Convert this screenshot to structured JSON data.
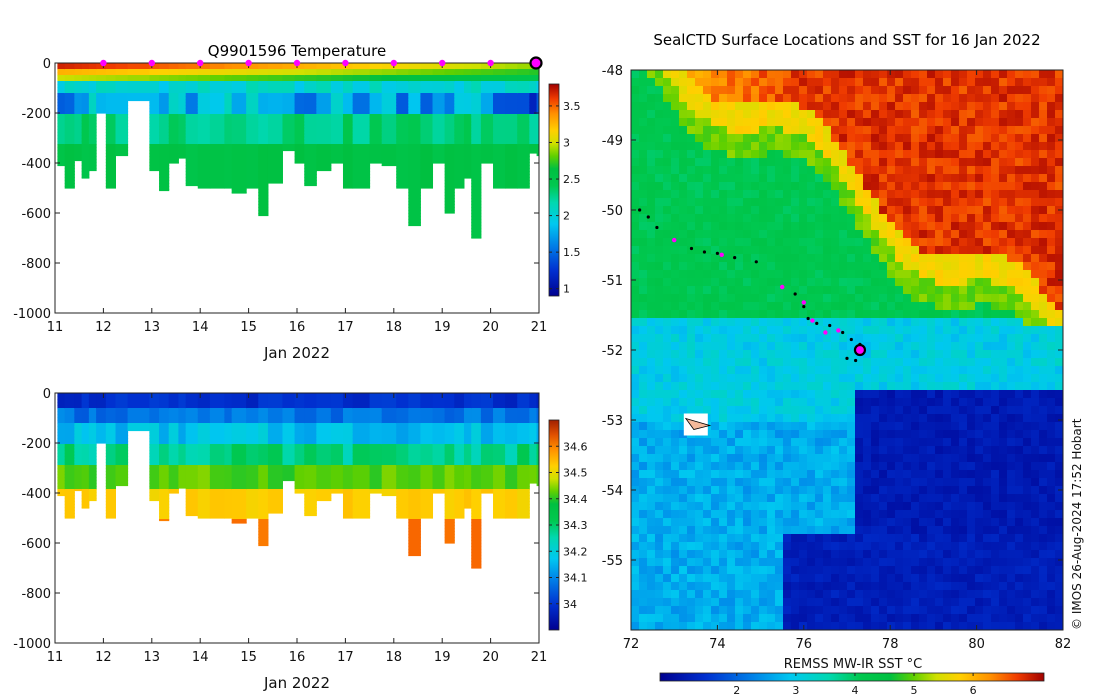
{
  "chart_data": [
    {
      "type": "heatmap",
      "id": "temperature",
      "title": "Q9901596  Temperature",
      "xlabel": "Jan 2022",
      "ylabel": "",
      "xlim": [
        11,
        21
      ],
      "ylim": [
        -1000,
        0
      ],
      "xticks": [
        "11",
        "12",
        "13",
        "14",
        "15",
        "16",
        "17",
        "18",
        "19",
        "20",
        "21"
      ],
      "yticks": [
        "0",
        "-200",
        "-400",
        "-600",
        "-800",
        "-1000"
      ],
      "colorbar": {
        "min": 0.9,
        "max": 3.8,
        "ticks": [
          "1",
          "1.5",
          "2",
          "2.5",
          "3",
          "3.5"
        ]
      },
      "surface_marker_days": [
        12,
        13,
        14,
        15,
        16,
        17,
        18,
        19,
        20
      ],
      "current_day": 21,
      "profiles": [
        {
          "t": 11.05,
          "d": 410
        },
        {
          "t": 11.2,
          "d": 500
        },
        {
          "t": 11.4,
          "d": 390
        },
        {
          "t": 11.55,
          "d": 460
        },
        {
          "t": 11.7,
          "d": 430
        },
        {
          "t": 11.85,
          "d": 200
        },
        {
          "t": 12.05,
          "d": 500
        },
        {
          "t": 12.25,
          "d": 370
        },
        {
          "t": 12.5,
          "d": 150
        },
        {
          "t": 12.95,
          "d": 430
        },
        {
          "t": 13.15,
          "d": 510
        },
        {
          "t": 13.35,
          "d": 400
        },
        {
          "t": 13.55,
          "d": 380
        },
        {
          "t": 13.7,
          "d": 490
        },
        {
          "t": 13.95,
          "d": 500
        },
        {
          "t": 14.2,
          "d": 500
        },
        {
          "t": 14.5,
          "d": 500
        },
        {
          "t": 14.65,
          "d": 520
        },
        {
          "t": 14.95,
          "d": 500
        },
        {
          "t": 15.2,
          "d": 610
        },
        {
          "t": 15.4,
          "d": 480
        },
        {
          "t": 15.7,
          "d": 350
        },
        {
          "t": 15.95,
          "d": 400
        },
        {
          "t": 16.15,
          "d": 490
        },
        {
          "t": 16.4,
          "d": 430
        },
        {
          "t": 16.7,
          "d": 400
        },
        {
          "t": 16.95,
          "d": 500
        },
        {
          "t": 17.15,
          "d": 500
        },
        {
          "t": 17.5,
          "d": 400
        },
        {
          "t": 17.75,
          "d": 410
        },
        {
          "t": 18.05,
          "d": 500
        },
        {
          "t": 18.3,
          "d": 650
        },
        {
          "t": 18.55,
          "d": 500
        },
        {
          "t": 18.8,
          "d": 400
        },
        {
          "t": 19.05,
          "d": 600
        },
        {
          "t": 19.25,
          "d": 500
        },
        {
          "t": 19.45,
          "d": 460
        },
        {
          "t": 19.6,
          "d": 700
        },
        {
          "t": 19.8,
          "d": 400
        },
        {
          "t": 20.05,
          "d": 500
        },
        {
          "t": 20.3,
          "d": 500
        },
        {
          "t": 20.55,
          "d": 500
        },
        {
          "t": 20.8,
          "d": 360
        },
        {
          "t": 20.95,
          "d": 370
        }
      ]
    },
    {
      "type": "heatmap",
      "id": "salinity",
      "title": "",
      "xlabel": "Jan 2022",
      "ylabel": "",
      "xlim": [
        11,
        21
      ],
      "ylim": [
        -1000,
        0
      ],
      "xticks": [
        "11",
        "12",
        "13",
        "14",
        "15",
        "16",
        "17",
        "18",
        "19",
        "20",
        "21"
      ],
      "yticks": [
        "0",
        "-200",
        "-400",
        "-600",
        "-800",
        "-1000"
      ],
      "colorbar": {
        "min": 33.9,
        "max": 34.7,
        "ticks": [
          "34",
          "34.1",
          "34.2",
          "34.3",
          "34.4",
          "34.5",
          "34.6"
        ]
      }
    },
    {
      "type": "heatmap",
      "id": "sst-map",
      "title": "SealCTD Surface Locations and SST for 16 Jan 2022",
      "xlabel": "",
      "ylabel": "",
      "xlim": [
        72,
        82
      ],
      "ylim": [
        -56,
        -48
      ],
      "xticks": [
        "72",
        "74",
        "76",
        "78",
        "80",
        "82"
      ],
      "yticks": [
        "-48",
        "-49",
        "-50",
        "-51",
        "-52",
        "-53",
        "-54",
        "-55"
      ],
      "colorbar": {
        "label": "REMSS MW-IR SST °C",
        "min": 0.7,
        "max": 7.2,
        "ticks": [
          "2",
          "3",
          "4",
          "5",
          "6"
        ]
      },
      "track_black": [
        [
          72.2,
          -50.0
        ],
        [
          72.4,
          -50.1
        ],
        [
          72.6,
          -50.25
        ],
        [
          73.4,
          -50.55
        ],
        [
          73.7,
          -50.6
        ],
        [
          74.0,
          -50.62
        ],
        [
          74.4,
          -50.68
        ],
        [
          74.9,
          -50.74
        ],
        [
          75.8,
          -51.2
        ],
        [
          76.0,
          -51.38
        ],
        [
          76.1,
          -51.55
        ],
        [
          76.3,
          -51.62
        ],
        [
          76.6,
          -51.65
        ],
        [
          76.9,
          -51.75
        ],
        [
          77.1,
          -51.85
        ],
        [
          77.3,
          -51.92
        ],
        [
          77.2,
          -52.15
        ],
        [
          77.0,
          -52.12
        ]
      ],
      "track_magenta": [
        [
          73.0,
          -50.43
        ],
        [
          74.1,
          -50.64
        ],
        [
          75.5,
          -51.1
        ],
        [
          76.0,
          -51.32
        ],
        [
          76.2,
          -51.58
        ],
        [
          76.5,
          -51.75
        ],
        [
          76.8,
          -51.72
        ]
      ],
      "current_location": [
        77.3,
        -52.0
      ],
      "release_location": [
        73.5,
        -53.05
      ]
    }
  ],
  "copyright": "© IMOS 26-Aug-2024 17:52 Hobart"
}
